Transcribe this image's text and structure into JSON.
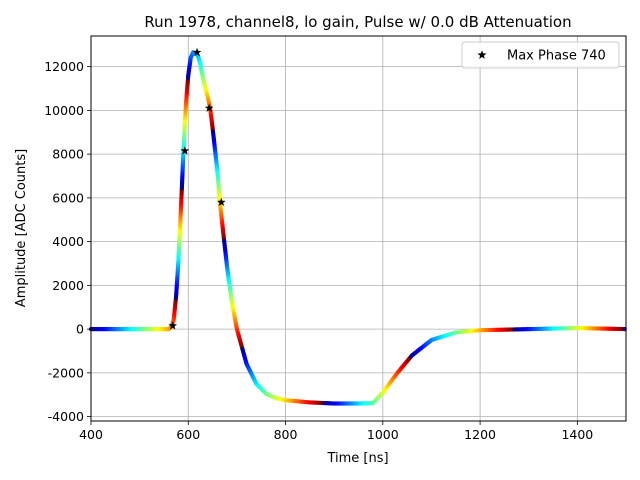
{
  "chart_data": {
    "type": "scatter",
    "title": "Run 1978, channel8, lo gain, Pulse w/ 0.0 dB Attenuation",
    "xlabel": "Time [ns]",
    "ylabel": "Amplitude [ADC Counts]",
    "xlim": [
      400,
      1500
    ],
    "ylim": [
      -4200,
      13400
    ],
    "xticks": [
      400,
      600,
      800,
      1000,
      1200,
      1400
    ],
    "yticks": [
      -4000,
      -2000,
      0,
      2000,
      4000,
      6000,
      8000,
      10000,
      12000
    ],
    "grid": true,
    "legend": {
      "placement": "top-right",
      "entries": [
        "Max Phase 740"
      ]
    },
    "pulse_series": {
      "colormap": "jet",
      "x": [
        400,
        500,
        560,
        565,
        570,
        575,
        580,
        585,
        590,
        595,
        600,
        605,
        610,
        615,
        620,
        625,
        630,
        640,
        645,
        650,
        660,
        665,
        670,
        680,
        690,
        700,
        720,
        740,
        760,
        780,
        800,
        850,
        900,
        950,
        980,
        1000,
        1030,
        1060,
        1100,
        1150,
        1200,
        1300,
        1400,
        1500
      ],
      "y": [
        0,
        0,
        0,
        100,
        400,
        1500,
        3200,
        5500,
        8100,
        10200,
        11600,
        12400,
        12650,
        12600,
        12500,
        12100,
        11500,
        10600,
        10100,
        9200,
        7200,
        5800,
        4800,
        2800,
        1200,
        0,
        -1600,
        -2500,
        -2950,
        -3150,
        -3250,
        -3350,
        -3400,
        -3400,
        -3380,
        -2900,
        -2000,
        -1200,
        -500,
        -150,
        -50,
        0,
        50,
        0
      ]
    },
    "markers": {
      "name": "Max Phase 740",
      "x": [
        568,
        593,
        618,
        643,
        668
      ],
      "y": [
        150,
        8150,
        12650,
        10100,
        5800
      ]
    }
  }
}
